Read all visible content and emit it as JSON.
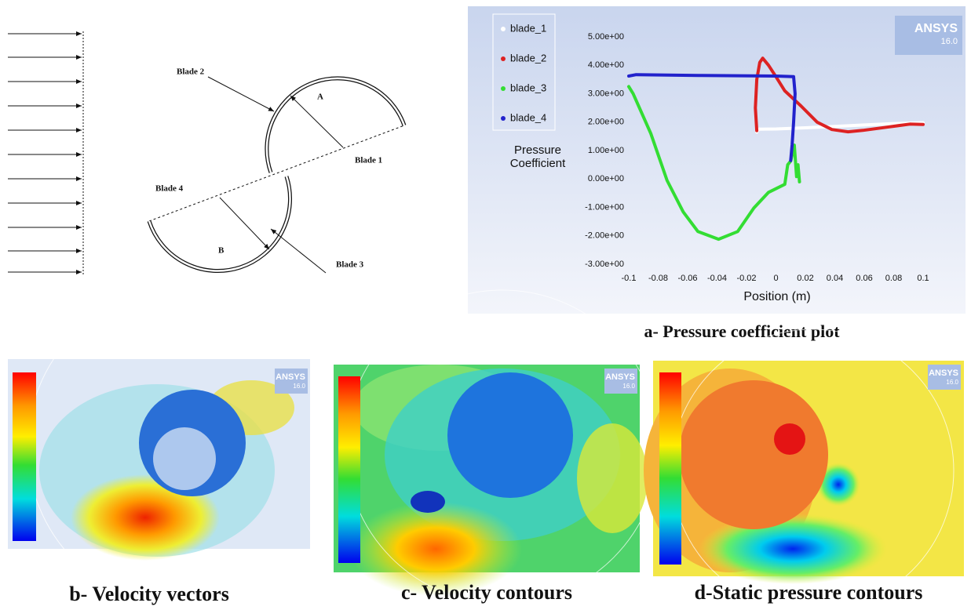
{
  "diagram": {
    "labels": {
      "blade_1": "Blade 1",
      "blade_2": "Blade 2",
      "blade_3": "Blade 3",
      "blade_4": "Blade 4",
      "region_a": "A",
      "region_b": "B"
    }
  },
  "chart_data": {
    "type": "scatter",
    "x_label": "Position (m)",
    "y_label": "Pressure Coefficient",
    "logo": {
      "name": "ANSYS",
      "version": "16.0"
    },
    "legend": "upper left",
    "grid": false,
    "xlim": [
      -0.1,
      0.1
    ],
    "xticks": [
      -0.1,
      -0.08,
      -0.06,
      -0.04,
      -0.02,
      0,
      0.02,
      0.04,
      0.06,
      0.08,
      0.1
    ],
    "ylim": [
      -3,
      5
    ],
    "yticks": [
      {
        "value": -3,
        "label": "-3.00e+00"
      },
      {
        "value": -2,
        "label": "-2.00e+00"
      },
      {
        "value": -1,
        "label": "-1.00e+00"
      },
      {
        "value": 0,
        "label": "0.00e+00"
      },
      {
        "value": 1,
        "label": "1.00e+00"
      },
      {
        "value": 2,
        "label": "2.00e+00"
      },
      {
        "value": 3,
        "label": "3.00e+00"
      },
      {
        "value": 4,
        "label": "4.00e+00"
      },
      {
        "value": 5,
        "label": "5.00e+00"
      }
    ],
    "series": [
      {
        "name": "blade_1",
        "color": "#ffffff",
        "x": [
          -0.013,
          -0.012,
          0,
          0.02,
          0.04,
          0.06,
          0.08,
          0.1
        ],
        "values": [
          1.65,
          1.75,
          1.76,
          1.8,
          1.85,
          1.9,
          1.95,
          1.98
        ]
      },
      {
        "name": "blade_2",
        "color": "#dd2222",
        "x": [
          -0.013,
          -0.014,
          -0.013,
          -0.011,
          -0.009,
          -0.005,
          0,
          0.006,
          0.017,
          0.028,
          0.038,
          0.049,
          0.059,
          0.075,
          0.091,
          0.1
        ],
        "values": [
          1.7,
          2.5,
          3.5,
          4.1,
          4.25,
          4.0,
          3.6,
          3.1,
          2.57,
          2.0,
          1.74,
          1.66,
          1.71,
          1.82,
          1.93,
          1.92
        ]
      },
      {
        "name": "blade_3",
        "color": "#33dd33",
        "x": [
          -0.1,
          -0.097,
          -0.085,
          -0.074,
          -0.063,
          -0.053,
          -0.039,
          -0.026,
          -0.015,
          -0.005,
          0.006,
          0.008,
          0.01,
          0.0125,
          0.014,
          0.015,
          0.016
        ],
        "values": [
          3.25,
          3.0,
          1.6,
          -0.05,
          -1.16,
          -1.85,
          -2.12,
          -1.85,
          -1.02,
          -0.47,
          -0.19,
          0.5,
          0.63,
          1.19,
          0.08,
          0.5,
          -0.1
        ]
      },
      {
        "name": "blade_4",
        "color": "#2222cc",
        "x": [
          -0.1,
          -0.095,
          -0.05,
          0,
          0.012,
          0.013,
          0.012,
          0.011,
          0.01
        ],
        "values": [
          3.62,
          3.67,
          3.64,
          3.62,
          3.6,
          3.0,
          2.0,
          1.2,
          0.65
        ]
      }
    ]
  },
  "captions": {
    "a": "a- Pressure coefficient plot"
  },
  "panels": [
    {
      "caption": "b- Velocity vectors",
      "logo": "ANSYS",
      "version": "16.0"
    },
    {
      "caption": "c- Velocity contours",
      "logo": "ANSYS",
      "version": "16.0"
    },
    {
      "caption": "d-Static pressure contours",
      "logo": "ANSYS",
      "version": "16.0"
    }
  ]
}
